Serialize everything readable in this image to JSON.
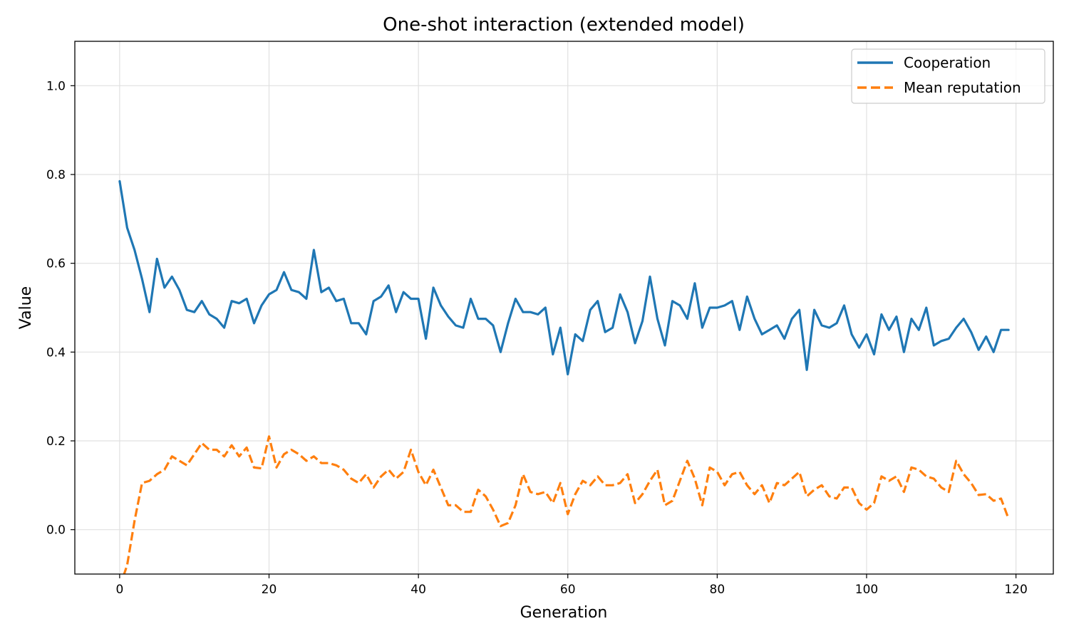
{
  "chart_data": {
    "type": "line",
    "title": "One-shot interaction (extended model)",
    "xlabel": "Generation",
    "ylabel": "Value",
    "xlim": [
      -6,
      125
    ],
    "ylim": [
      -0.1,
      1.1
    ],
    "xticks": [
      0,
      20,
      40,
      60,
      80,
      100,
      120
    ],
    "yticks": [
      0.0,
      0.2,
      0.4,
      0.6,
      0.8,
      1.0
    ],
    "xtick_labels": [
      "0",
      "20",
      "40",
      "60",
      "80",
      "100",
      "120"
    ],
    "ytick_labels": [
      "0.0",
      "0.2",
      "0.4",
      "0.6",
      "0.8",
      "1.0"
    ],
    "grid": true,
    "legend_position": "top-right",
    "series": [
      {
        "name": "Cooperation",
        "color": "#1f77b4",
        "style": "solid",
        "values": [
          0.785,
          0.68,
          0.63,
          0.565,
          0.49,
          0.61,
          0.545,
          0.57,
          0.54,
          0.495,
          0.49,
          0.515,
          0.485,
          0.475,
          0.455,
          0.515,
          0.51,
          0.52,
          0.465,
          0.505,
          0.53,
          0.54,
          0.58,
          0.54,
          0.535,
          0.52,
          0.63,
          0.535,
          0.545,
          0.515,
          0.52,
          0.465,
          0.465,
          0.44,
          0.515,
          0.525,
          0.55,
          0.49,
          0.535,
          0.52,
          0.52,
          0.43,
          0.545,
          0.505,
          0.48,
          0.46,
          0.455,
          0.52,
          0.475,
          0.475,
          0.46,
          0.4,
          0.465,
          0.52,
          0.49,
          0.49,
          0.485,
          0.5,
          0.395,
          0.455,
          0.35,
          0.44,
          0.425,
          0.495,
          0.515,
          0.445,
          0.455,
          0.53,
          0.49,
          0.42,
          0.47,
          0.57,
          0.475,
          0.415,
          0.515,
          0.505,
          0.475,
          0.555,
          0.455,
          0.5,
          0.5,
          0.505,
          0.515,
          0.45,
          0.525,
          0.475,
          0.44,
          0.45,
          0.46,
          0.43,
          0.475,
          0.495,
          0.36,
          0.495,
          0.46,
          0.455,
          0.465,
          0.505,
          0.44,
          0.41,
          0.44,
          0.395,
          0.485,
          0.45,
          0.48,
          0.4,
          0.475,
          0.45,
          0.5,
          0.415,
          0.425,
          0.43,
          0.455,
          0.475,
          0.445,
          0.405,
          0.435,
          0.4,
          0.45,
          0.45
        ]
      },
      {
        "name": "Mean reputation",
        "color": "#ff7f0e",
        "style": "dashed",
        "values": [
          -0.13,
          -0.08,
          0.02,
          0.105,
          0.11,
          0.125,
          0.135,
          0.165,
          0.155,
          0.145,
          0.17,
          0.195,
          0.18,
          0.18,
          0.165,
          0.19,
          0.165,
          0.185,
          0.14,
          0.138,
          0.21,
          0.14,
          0.17,
          0.18,
          0.17,
          0.155,
          0.165,
          0.15,
          0.15,
          0.145,
          0.135,
          0.115,
          0.105,
          0.125,
          0.095,
          0.12,
          0.135,
          0.115,
          0.13,
          0.18,
          0.13,
          0.1,
          0.135,
          0.095,
          0.055,
          0.055,
          0.04,
          0.04,
          0.09,
          0.075,
          0.045,
          0.008,
          0.015,
          0.055,
          0.125,
          0.085,
          0.08,
          0.085,
          0.06,
          0.105,
          0.035,
          0.08,
          0.11,
          0.1,
          0.12,
          0.1,
          0.1,
          0.105,
          0.125,
          0.06,
          0.08,
          0.11,
          0.135,
          0.055,
          0.065,
          0.11,
          0.155,
          0.115,
          0.055,
          0.14,
          0.13,
          0.1,
          0.125,
          0.13,
          0.1,
          0.08,
          0.1,
          0.06,
          0.105,
          0.1,
          0.115,
          0.13,
          0.075,
          0.09,
          0.1,
          0.075,
          0.07,
          0.095,
          0.095,
          0.06,
          0.045,
          0.06,
          0.12,
          0.11,
          0.12,
          0.085,
          0.14,
          0.135,
          0.12,
          0.115,
          0.095,
          0.085,
          0.155,
          0.125,
          0.105,
          0.078,
          0.08,
          0.065,
          0.07,
          0.025
        ]
      }
    ]
  }
}
